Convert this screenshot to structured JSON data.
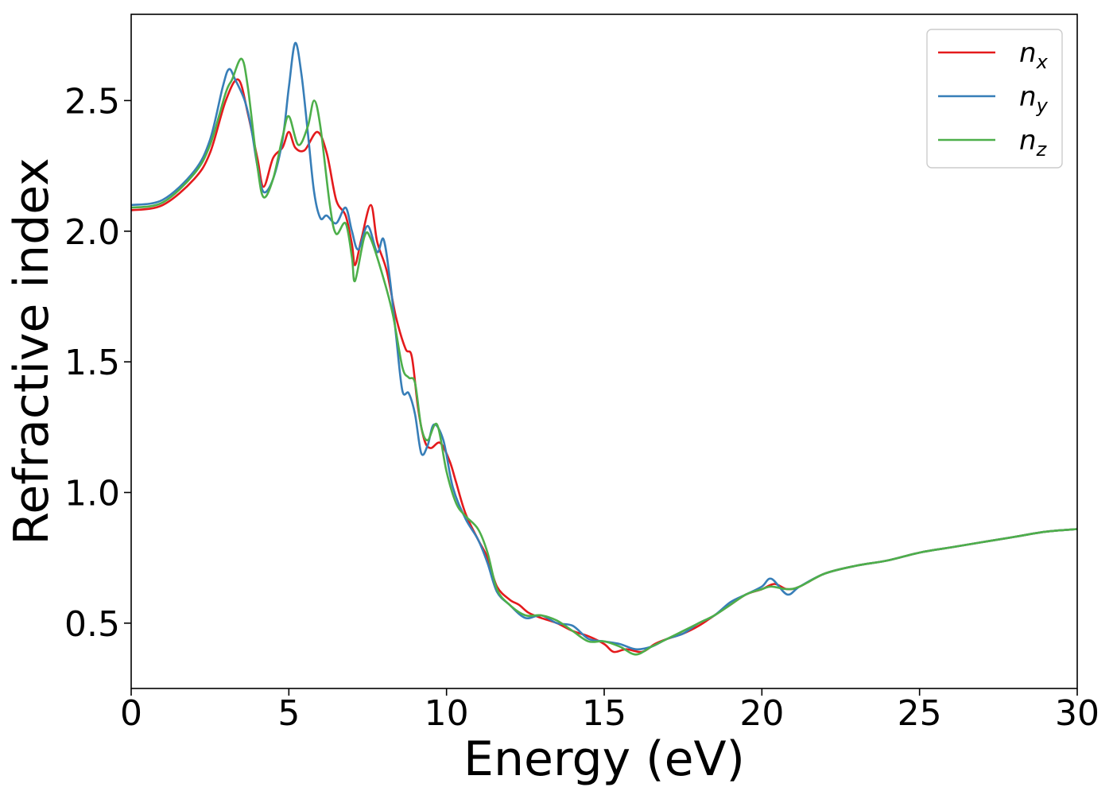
{
  "chart_data": {
    "type": "line",
    "title": "",
    "xlabel": "Energy (eV)",
    "ylabel": "Refractive index",
    "xlim": [
      0,
      30
    ],
    "ylim": [
      0.25,
      2.83
    ],
    "xticks": [
      0,
      5,
      10,
      15,
      20,
      25,
      30
    ],
    "xtick_labels": [
      "0",
      "5",
      "10",
      "15",
      "20",
      "25",
      "30"
    ],
    "yticks": [
      0.5,
      1.0,
      1.5,
      2.0,
      2.5
    ],
    "ytick_labels": [
      "0.5",
      "1.0",
      "1.5",
      "2.0",
      "2.5"
    ],
    "grid": false,
    "legend_position": "top-right",
    "series": [
      {
        "name": "n_x",
        "legend_base": "n",
        "legend_sub": "x",
        "color": "#e41a1c",
        "points": [
          [
            0,
            2.08
          ],
          [
            1,
            2.1
          ],
          [
            2,
            2.2
          ],
          [
            2.5,
            2.3
          ],
          [
            3,
            2.5
          ],
          [
            3.4,
            2.58
          ],
          [
            3.7,
            2.45
          ],
          [
            4.0,
            2.28
          ],
          [
            4.2,
            2.17
          ],
          [
            4.5,
            2.28
          ],
          [
            4.8,
            2.32
          ],
          [
            5.0,
            2.38
          ],
          [
            5.2,
            2.32
          ],
          [
            5.5,
            2.31
          ],
          [
            5.9,
            2.38
          ],
          [
            6.2,
            2.3
          ],
          [
            6.5,
            2.12
          ],
          [
            6.8,
            2.06
          ],
          [
            7.0,
            1.95
          ],
          [
            7.1,
            1.87
          ],
          [
            7.3,
            1.97
          ],
          [
            7.6,
            2.1
          ],
          [
            7.8,
            1.96
          ],
          [
            8.1,
            1.85
          ],
          [
            8.4,
            1.67
          ],
          [
            8.7,
            1.55
          ],
          [
            8.9,
            1.52
          ],
          [
            9.1,
            1.32
          ],
          [
            9.3,
            1.2
          ],
          [
            9.5,
            1.17
          ],
          [
            9.8,
            1.19
          ],
          [
            10.1,
            1.12
          ],
          [
            10.3,
            1.04
          ],
          [
            10.6,
            0.92
          ],
          [
            11.0,
            0.82
          ],
          [
            11.3,
            0.75
          ],
          [
            11.6,
            0.64
          ],
          [
            12.0,
            0.59
          ],
          [
            12.3,
            0.57
          ],
          [
            12.6,
            0.54
          ],
          [
            13.0,
            0.52
          ],
          [
            13.5,
            0.5
          ],
          [
            14.0,
            0.47
          ],
          [
            14.5,
            0.45
          ],
          [
            15.0,
            0.42
          ],
          [
            15.3,
            0.39
          ],
          [
            15.7,
            0.4
          ],
          [
            16.2,
            0.39
          ],
          [
            16.6,
            0.42
          ],
          [
            17.0,
            0.44
          ],
          [
            17.5,
            0.46
          ],
          [
            18.0,
            0.49
          ],
          [
            18.5,
            0.53
          ],
          [
            19.0,
            0.57
          ],
          [
            19.5,
            0.61
          ],
          [
            20.0,
            0.63
          ],
          [
            20.4,
            0.65
          ],
          [
            20.8,
            0.63
          ],
          [
            21.2,
            0.64
          ],
          [
            22.0,
            0.69
          ],
          [
            23.0,
            0.72
          ],
          [
            24.0,
            0.74
          ],
          [
            25.0,
            0.77
          ],
          [
            26.0,
            0.79
          ],
          [
            27.0,
            0.81
          ],
          [
            28.0,
            0.83
          ],
          [
            29.0,
            0.85
          ],
          [
            30.0,
            0.86
          ]
        ]
      },
      {
        "name": "n_y",
        "legend_base": "n",
        "legend_sub": "y",
        "color": "#377eb8",
        "points": [
          [
            0,
            2.1
          ],
          [
            1,
            2.12
          ],
          [
            2,
            2.23
          ],
          [
            2.5,
            2.35
          ],
          [
            2.9,
            2.55
          ],
          [
            3.1,
            2.62
          ],
          [
            3.3,
            2.58
          ],
          [
            3.6,
            2.5
          ],
          [
            3.8,
            2.4
          ],
          [
            4.0,
            2.25
          ],
          [
            4.2,
            2.15
          ],
          [
            4.5,
            2.2
          ],
          [
            4.8,
            2.35
          ],
          [
            5.0,
            2.55
          ],
          [
            5.2,
            2.72
          ],
          [
            5.4,
            2.6
          ],
          [
            5.6,
            2.38
          ],
          [
            5.8,
            2.15
          ],
          [
            6.0,
            2.05
          ],
          [
            6.2,
            2.06
          ],
          [
            6.5,
            2.03
          ],
          [
            6.8,
            2.09
          ],
          [
            7.0,
            2.0
          ],
          [
            7.2,
            1.93
          ],
          [
            7.5,
            2.02
          ],
          [
            7.8,
            1.92
          ],
          [
            8.0,
            1.97
          ],
          [
            8.2,
            1.82
          ],
          [
            8.4,
            1.6
          ],
          [
            8.6,
            1.39
          ],
          [
            8.8,
            1.38
          ],
          [
            9.0,
            1.3
          ],
          [
            9.2,
            1.15
          ],
          [
            9.4,
            1.18
          ],
          [
            9.6,
            1.26
          ],
          [
            9.9,
            1.2
          ],
          [
            10.2,
            1.02
          ],
          [
            10.6,
            0.9
          ],
          [
            11.0,
            0.82
          ],
          [
            11.3,
            0.73
          ],
          [
            11.6,
            0.62
          ],
          [
            12.0,
            0.57
          ],
          [
            12.5,
            0.52
          ],
          [
            13.0,
            0.53
          ],
          [
            13.5,
            0.5
          ],
          [
            14.0,
            0.49
          ],
          [
            14.5,
            0.44
          ],
          [
            15.0,
            0.43
          ],
          [
            15.5,
            0.42
          ],
          [
            16.0,
            0.4
          ],
          [
            16.5,
            0.41
          ],
          [
            17.0,
            0.44
          ],
          [
            17.5,
            0.46
          ],
          [
            18.0,
            0.5
          ],
          [
            18.5,
            0.53
          ],
          [
            19.0,
            0.58
          ],
          [
            19.5,
            0.61
          ],
          [
            20.0,
            0.64
          ],
          [
            20.3,
            0.67
          ],
          [
            20.8,
            0.61
          ],
          [
            21.2,
            0.64
          ],
          [
            22.0,
            0.69
          ],
          [
            23.0,
            0.72
          ],
          [
            24.0,
            0.74
          ],
          [
            25.0,
            0.77
          ],
          [
            26.0,
            0.79
          ],
          [
            27.0,
            0.81
          ],
          [
            28.0,
            0.83
          ],
          [
            29.0,
            0.85
          ],
          [
            30.0,
            0.86
          ]
        ]
      },
      {
        "name": "n_z",
        "legend_base": "n",
        "legend_sub": "z",
        "color": "#4daf4a",
        "points": [
          [
            0,
            2.09
          ],
          [
            1,
            2.11
          ],
          [
            2,
            2.22
          ],
          [
            2.5,
            2.33
          ],
          [
            3,
            2.53
          ],
          [
            3.2,
            2.58
          ],
          [
            3.5,
            2.66
          ],
          [
            3.7,
            2.55
          ],
          [
            4.0,
            2.25
          ],
          [
            4.2,
            2.13
          ],
          [
            4.5,
            2.2
          ],
          [
            4.8,
            2.36
          ],
          [
            5.0,
            2.44
          ],
          [
            5.3,
            2.33
          ],
          [
            5.6,
            2.4
          ],
          [
            5.8,
            2.5
          ],
          [
            6.0,
            2.4
          ],
          [
            6.3,
            2.1
          ],
          [
            6.5,
            1.99
          ],
          [
            6.8,
            2.03
          ],
          [
            7.0,
            1.9
          ],
          [
            7.1,
            1.81
          ],
          [
            7.4,
            1.98
          ],
          [
            7.6,
            1.97
          ],
          [
            8.0,
            1.82
          ],
          [
            8.3,
            1.68
          ],
          [
            8.6,
            1.48
          ],
          [
            8.8,
            1.44
          ],
          [
            9.0,
            1.42
          ],
          [
            9.2,
            1.25
          ],
          [
            9.4,
            1.2
          ],
          [
            9.7,
            1.26
          ],
          [
            10.0,
            1.08
          ],
          [
            10.3,
            0.96
          ],
          [
            10.6,
            0.91
          ],
          [
            11.0,
            0.86
          ],
          [
            11.3,
            0.77
          ],
          [
            11.6,
            0.63
          ],
          [
            12.0,
            0.57
          ],
          [
            12.5,
            0.53
          ],
          [
            13.0,
            0.53
          ],
          [
            13.5,
            0.51
          ],
          [
            14.0,
            0.47
          ],
          [
            14.5,
            0.43
          ],
          [
            15.0,
            0.43
          ],
          [
            15.5,
            0.41
          ],
          [
            16.0,
            0.38
          ],
          [
            16.5,
            0.41
          ],
          [
            17.0,
            0.44
          ],
          [
            17.5,
            0.47
          ],
          [
            18.0,
            0.5
          ],
          [
            18.5,
            0.53
          ],
          [
            19.0,
            0.57
          ],
          [
            19.5,
            0.61
          ],
          [
            20.0,
            0.63
          ],
          [
            20.3,
            0.64
          ],
          [
            20.8,
            0.63
          ],
          [
            21.2,
            0.64
          ],
          [
            22.0,
            0.69
          ],
          [
            23.0,
            0.72
          ],
          [
            24.0,
            0.74
          ],
          [
            25.0,
            0.77
          ],
          [
            26.0,
            0.79
          ],
          [
            27.0,
            0.81
          ],
          [
            28.0,
            0.83
          ],
          [
            29.0,
            0.85
          ],
          [
            30.0,
            0.86
          ]
        ]
      }
    ]
  }
}
